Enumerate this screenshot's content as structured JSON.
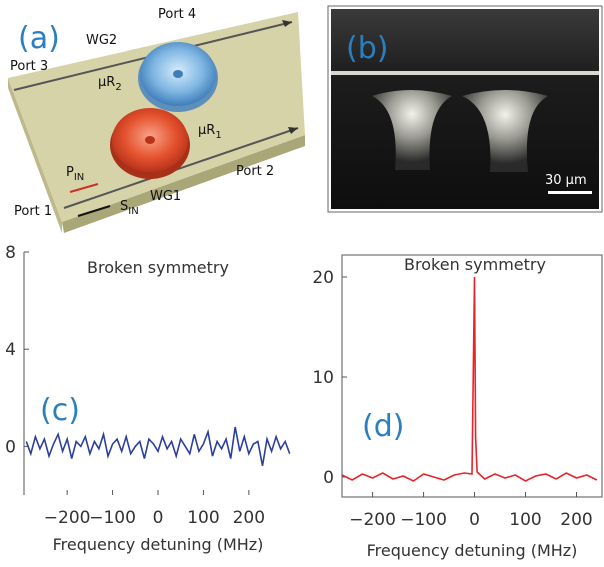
{
  "diagram": {
    "label": "(a)",
    "port4": "Port 4",
    "wg2": "WG2",
    "port3": "Port 3",
    "ring2": {
      "text": "μR",
      "sub": "2"
    },
    "ring1": {
      "text": "μR",
      "sub": "1"
    },
    "port2": "Port 2",
    "pump": {
      "text": "P",
      "sub": "IN"
    },
    "signal": {
      "text": "S",
      "sub": "IN"
    },
    "wg1": "WG1",
    "port1": "Port 1"
  },
  "photo": {
    "label": "(b)",
    "scale_bar": "30 μm"
  },
  "chart_data": [
    {
      "type": "line",
      "label": "(c)",
      "title": "Broken symmetry",
      "x_label": "Frequency detuning (MHz)",
      "x": [
        -290,
        -280,
        -270,
        -260,
        -250,
        -240,
        -230,
        -220,
        -210,
        -200,
        -190,
        -180,
        -170,
        -160,
        -150,
        -140,
        -130,
        -120,
        -110,
        -100,
        -90,
        -80,
        -70,
        -60,
        -50,
        -40,
        -30,
        -20,
        -10,
        0,
        10,
        20,
        30,
        40,
        50,
        60,
        70,
        80,
        90,
        100,
        110,
        120,
        130,
        140,
        150,
        160,
        170,
        180,
        190,
        200,
        210,
        220,
        230,
        240,
        250,
        260,
        270,
        280,
        290
      ],
      "series": [
        {
          "color": "#2b3f9e",
          "values": [
            0.2,
            -0.3,
            0.4,
            -0.1,
            0.3,
            -0.4,
            0.1,
            0.5,
            -0.2,
            0.3,
            -0.5,
            0.2,
            0.0,
            0.4,
            -0.3,
            0.2,
            -0.1,
            0.5,
            -0.4,
            0.1,
            0.3,
            -0.2,
            0.4,
            -0.3,
            0.0,
            0.2,
            -0.5,
            0.3,
            0.1,
            -0.2,
            0.4,
            -0.1,
            0.2,
            -0.4,
            0.3,
            0.0,
            -0.3,
            0.5,
            -0.2,
            0.1,
            0.6,
            -0.4,
            0.2,
            -0.1,
            0.3,
            -0.5,
            0.8,
            -0.2,
            0.4,
            -0.3,
            0.1,
            0.2,
            -0.8,
            0.3,
            -0.2,
            0.4,
            -0.1,
            0.2,
            -0.3
          ]
        }
      ],
      "xlim": [
        -295,
        295
      ],
      "ylim": [
        -2,
        8
      ],
      "xticks": [
        {
          "value": -200,
          "label": "−200"
        },
        {
          "value": -100,
          "label": "−100"
        },
        0,
        100,
        200
      ],
      "yticks": [
        0,
        4,
        8
      ]
    },
    {
      "type": "line",
      "label": "(d)",
      "title": "Broken symmetry",
      "x_label": "Frequency detuning (MHz)",
      "x": [
        -260,
        -240,
        -220,
        -200,
        -180,
        -160,
        -140,
        -120,
        -100,
        -80,
        -60,
        -40,
        -20,
        -5,
        0,
        2,
        5,
        20,
        40,
        60,
        80,
        100,
        120,
        140,
        160,
        180,
        200,
        220,
        240
      ],
      "series": [
        {
          "color": "#e8232a",
          "values": [
            0.2,
            -0.3,
            0.3,
            -0.1,
            0.4,
            -0.2,
            0.1,
            -0.4,
            0.3,
            0.0,
            -0.3,
            0.2,
            0.4,
            0.3,
            20,
            4,
            0.5,
            -0.2,
            0.3,
            -0.1,
            0.2,
            -0.4,
            0.1,
            0.3,
            -0.2,
            0.4,
            -0.1,
            0.2,
            -0.3
          ]
        }
      ],
      "xlim": [
        -260,
        250
      ],
      "ylim": [
        -2,
        22.2
      ],
      "xticks": [
        {
          "value": -200,
          "label": "−200"
        },
        {
          "value": -100,
          "label": "−100"
        },
        0,
        100,
        200
      ],
      "yticks": [
        0,
        10,
        20
      ]
    }
  ]
}
